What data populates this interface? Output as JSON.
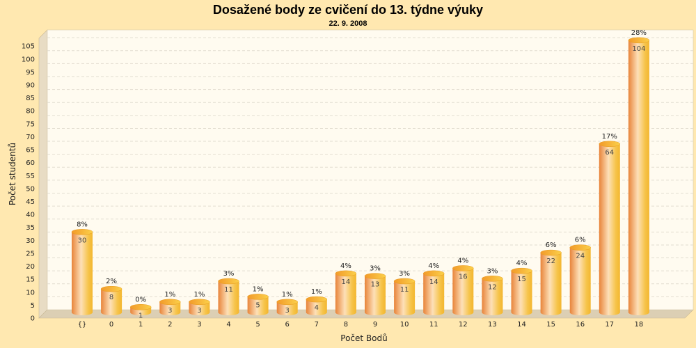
{
  "chart_data": {
    "type": "bar",
    "title": "Dosažené body ze cvičení do 13. týdne výuky",
    "subtitle": "22. 9. 2008",
    "xlabel": "Počet Bodů",
    "ylabel": "Počet studentů",
    "ylim": [
      0,
      108
    ],
    "yticks": [
      0,
      5,
      10,
      15,
      20,
      25,
      30,
      35,
      40,
      45,
      50,
      55,
      60,
      65,
      70,
      75,
      80,
      85,
      90,
      95,
      100,
      105
    ],
    "grid": true,
    "categories": [
      "{}",
      "0",
      "1",
      "2",
      "3",
      "4",
      "5",
      "6",
      "7",
      "8",
      "9",
      "10",
      "11",
      "12",
      "13",
      "14",
      "15",
      "16",
      "17",
      "18"
    ],
    "values": [
      30,
      8,
      1,
      3,
      3,
      11,
      5,
      3,
      4,
      14,
      13,
      11,
      14,
      16,
      12,
      15,
      22,
      24,
      64,
      104
    ],
    "value_labels": [
      "30",
      "8",
      "1",
      "3",
      "3",
      "11",
      "5",
      "3",
      "4",
      "14",
      "13",
      "11",
      "14",
      "16",
      "12",
      "15",
      "22",
      "24",
      "64",
      "104"
    ],
    "percent_labels": [
      "8%",
      "2%",
      "0%",
      "1%",
      "1%",
      "3%",
      "1%",
      "1%",
      "1%",
      "4%",
      "3%",
      "3%",
      "4%",
      "4%",
      "3%",
      "4%",
      "6%",
      "6%",
      "17%",
      "28%"
    ],
    "colors": {
      "background": "#ffe8b0",
      "plot": "#fffbf0",
      "wall": "#e8dcc4",
      "floor": "#dccfb4",
      "bar_dark": "#e8843a",
      "bar_light": "#fde0b8",
      "bar_right": "#f6c44a",
      "bar_top": "#f7b52c"
    }
  }
}
